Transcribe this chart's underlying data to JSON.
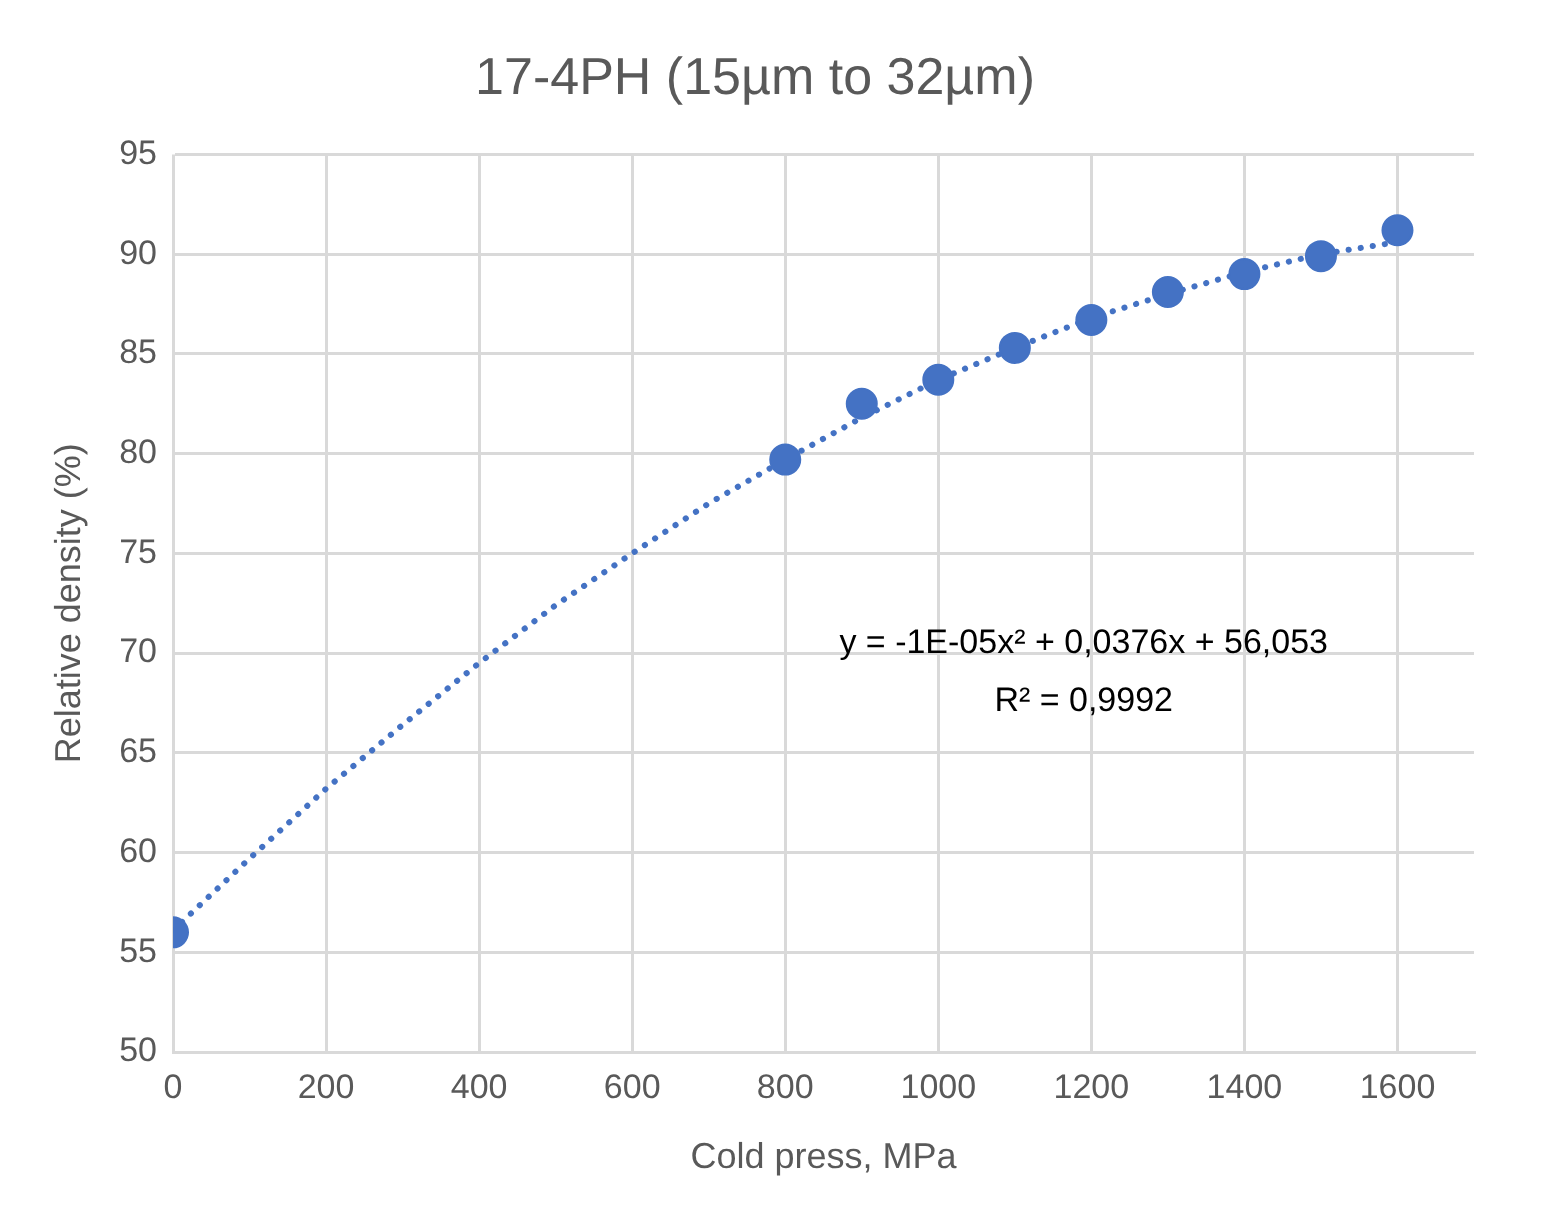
{
  "chart_data": {
    "type": "scatter",
    "title": "17-4PH (15µm to 32µm)",
    "xlabel": "Cold press, MPa",
    "ylabel": "Relative density (%)",
    "xlim": [
      0,
      1700
    ],
    "xticks": [
      0,
      200,
      400,
      600,
      800,
      1000,
      1200,
      1400,
      1600
    ],
    "ylim": [
      50,
      95
    ],
    "yticks": [
      50,
      55,
      60,
      65,
      70,
      75,
      80,
      85,
      90,
      95
    ],
    "grid": true,
    "marker": "circle",
    "series": [
      {
        "color": "#4472c4",
        "x": [
          0,
          800,
          900,
          1000,
          1100,
          1200,
          1300,
          1400,
          1500,
          1600
        ],
        "values": [
          56.0,
          79.7,
          82.5,
          83.7,
          85.3,
          86.7,
          88.1,
          89.0,
          89.9,
          91.2
        ]
      },
      {
        "type": "line",
        "color": "#4472c4",
        "line_style": "dotted",
        "marker": "none",
        "x": [
          0,
          100,
          200,
          300,
          400,
          500,
          600,
          700,
          800,
          900,
          1000,
          1100,
          1200,
          1300,
          1400,
          1500,
          1600
        ],
        "values": [
          56.1,
          59.7,
          63.2,
          66.4,
          69.5,
          72.4,
          75.0,
          77.5,
          79.7,
          81.8,
          83.7,
          85.3,
          86.8,
          88.0,
          89.1,
          90.0,
          90.6
        ]
      }
    ],
    "annotations": [
      "y = -1E-05x² + 0,0376x + 56,053",
      "R² = 0,9992"
    ]
  }
}
